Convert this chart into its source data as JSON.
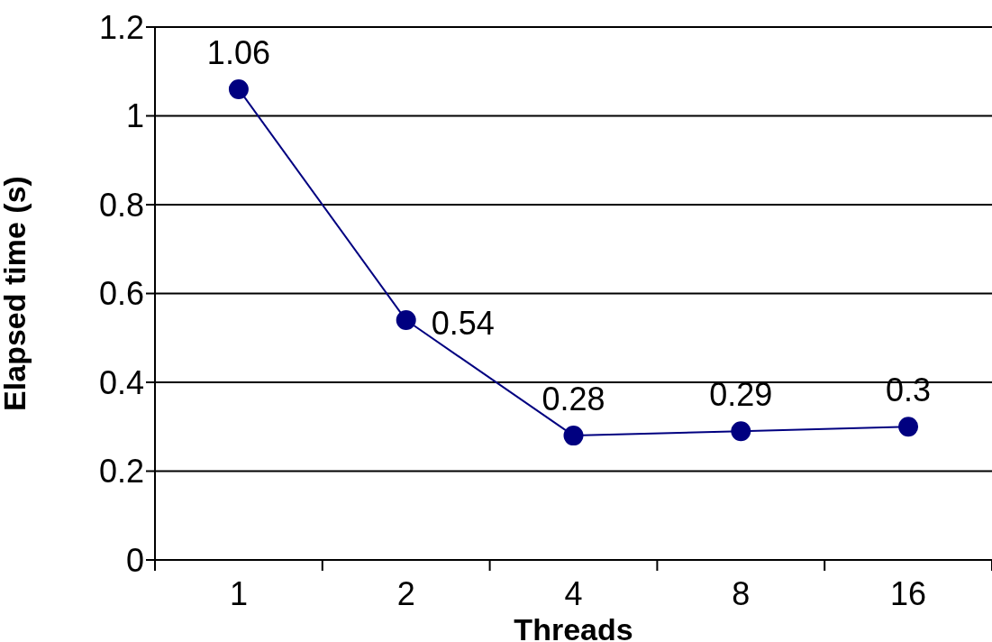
{
  "chart_data": {
    "type": "line",
    "xlabel": "Threads",
    "ylabel": "Elapsed time (s)",
    "categories": [
      "1",
      "2",
      "4",
      "8",
      "16"
    ],
    "series": [
      {
        "color": "#000080",
        "values": [
          1.06,
          0.54,
          0.28,
          0.29,
          0.3
        ]
      }
    ],
    "ylim": [
      0,
      1.2
    ],
    "yticks": [
      0,
      0.2,
      0.4,
      0.6,
      0.8,
      1,
      1.2
    ],
    "grid": "y",
    "legend": false,
    "marker": "circle",
    "line_style": "solid",
    "data_labels": true
  }
}
